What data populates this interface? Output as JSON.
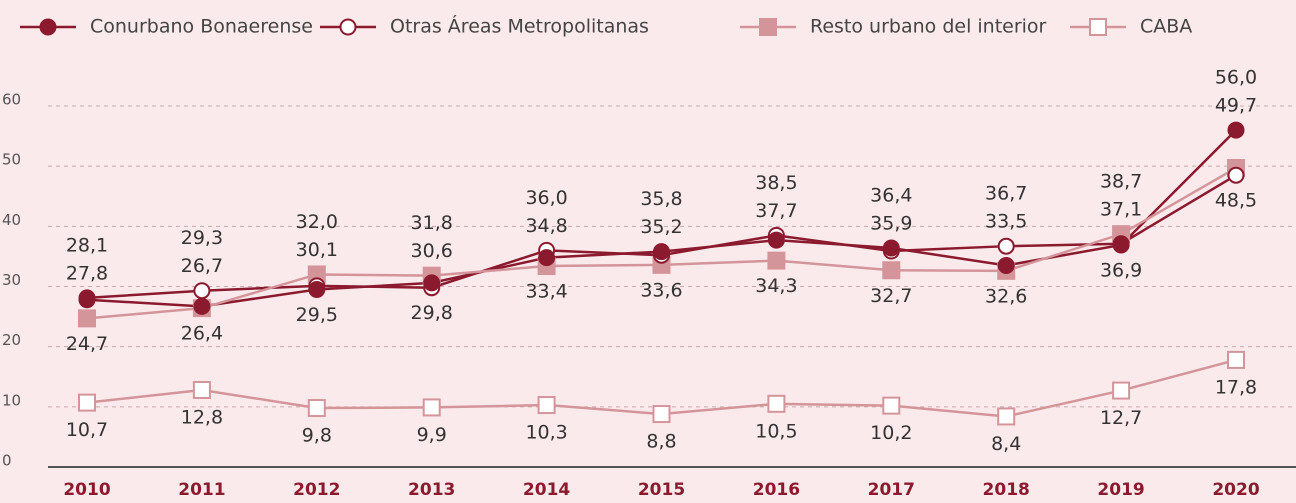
{
  "chart_data": {
    "type": "line",
    "categories": [
      "2010",
      "2011",
      "2012",
      "2013",
      "2014",
      "2015",
      "2016",
      "2017",
      "2018",
      "2019",
      "2020"
    ],
    "series": [
      {
        "name": "Conurbano Bonaerense",
        "color": "#8b1a2e",
        "marker": "filled-circle",
        "values": [
          27.8,
          26.7,
          29.5,
          30.6,
          34.8,
          35.8,
          37.7,
          36.4,
          33.5,
          36.9,
          56.0
        ],
        "value_labels": [
          "27,8",
          "26,7",
          "29,5",
          "30,6",
          "34,8",
          "35,8",
          "37,7",
          "36,4",
          "33,5",
          "36,9",
          "56,0"
        ]
      },
      {
        "name": "Otras Áreas Metropolitanas",
        "color": "#8b1a2e",
        "marker": "open-circle",
        "values": [
          28.1,
          29.3,
          30.1,
          29.8,
          36.0,
          35.2,
          38.5,
          35.9,
          36.7,
          37.1,
          48.5
        ],
        "value_labels": [
          "28,1",
          "29,3",
          "30,1",
          "29,8",
          "36,0",
          "35,2",
          "38,5",
          "35,9",
          "36,7",
          "37,1",
          "48,5"
        ]
      },
      {
        "name": "Resto urbano del interior",
        "color": "#d4959a",
        "marker": "filled-square",
        "values": [
          24.7,
          26.4,
          32.0,
          31.8,
          33.4,
          33.6,
          34.3,
          32.7,
          32.6,
          38.7,
          49.7
        ],
        "value_labels": [
          "24,7",
          "26,4",
          "32,0",
          "31,8",
          "33,4",
          "33,6",
          "34,3",
          "32,7",
          "32,6",
          "38,7",
          "49,7"
        ]
      },
      {
        "name": "CABA",
        "color": "#d4959a",
        "marker": "open-square",
        "values": [
          10.7,
          12.8,
          9.8,
          9.9,
          10.3,
          8.8,
          10.5,
          10.2,
          8.4,
          12.7,
          17.8
        ],
        "value_labels": [
          "10,7",
          "12,8",
          "9,8",
          "9,9",
          "10,3",
          "8,8",
          "10,5",
          "10,2",
          "8,4",
          "12,7",
          "17,8"
        ]
      }
    ],
    "ylim": [
      0,
      60
    ],
    "yticks": [
      0,
      10,
      20,
      30,
      40,
      50,
      60
    ],
    "grid": true,
    "legend": "top"
  }
}
